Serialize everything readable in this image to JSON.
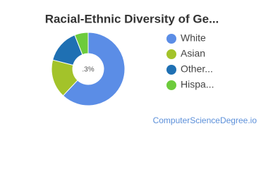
{
  "chart_data": {
    "type": "donut",
    "title": "Racial-Ethnic Diversity of Ge...",
    "center_label": ".3%",
    "categories": [
      "White",
      "Asian",
      "Other...",
      "Hispa..."
    ],
    "values": [
      62,
      17,
      15,
      6
    ],
    "colors": [
      "#5b8de6",
      "#a3c32a",
      "#1f70b3",
      "#6dcb3c"
    ],
    "source": "ComputerScienceDegree.io"
  }
}
